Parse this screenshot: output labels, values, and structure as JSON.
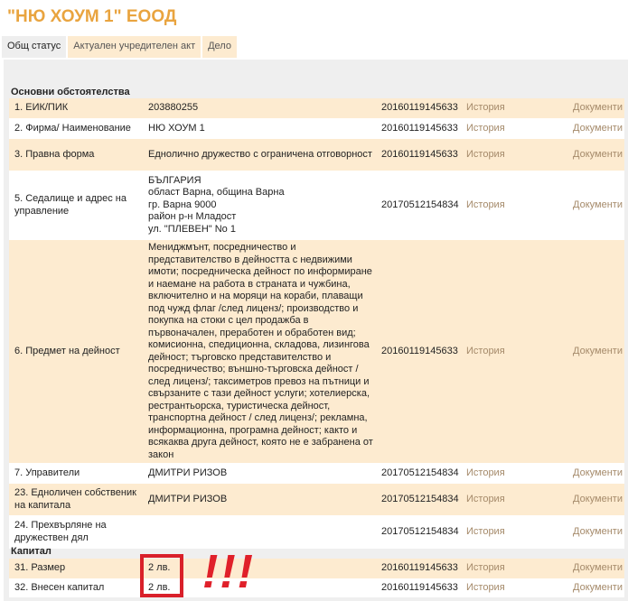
{
  "title": "\"НЮ ХОУМ 1\" ЕООД",
  "tabs": [
    {
      "label": "Общ статус",
      "active": true
    },
    {
      "label": "Актуален учредителен акт"
    },
    {
      "label": "Дело"
    }
  ],
  "sections": {
    "main": "Основни обстоятелства",
    "capital": "Капитал"
  },
  "rows": [
    {
      "label": "1.  ЕИК/ПИК",
      "value": "203880255",
      "date": "20160119145633",
      "history": "История",
      "docs": "Документи"
    },
    {
      "label": "2.  Фирма/ Наименование",
      "value": "НЮ ХОУМ 1",
      "date": "20160119145633",
      "history": "История",
      "docs": "Документи"
    },
    {
      "label": "3.  Правна форма",
      "value": "Еднолично дружество с ограничена отговорност",
      "date": "20160119145633",
      "history": "История",
      "docs": "Документи"
    },
    {
      "label": "5.  Седалище и адрес на управление",
      "value": "БЪЛГАРИЯ\nобласт Варна, община Варна\nгр. Варна 9000\nрайон р-н Младост\nул. \"ПЛЕВЕН\" No 1",
      "date": "20170512154834",
      "history": "История",
      "docs": "Документи"
    },
    {
      "label": "6.  Предмет на дейност",
      "value": "Мениджмънт, посредничество и представителство в дейността с недвижими имоти; посредническа дейност по информиране и наемане на работа в страната и чужбина, включително и на моряци на кораби, плаващи под чужд флаг /след лиценз/; производство и покупка на стоки с цел продажба в първоначален, преработен и обработен вид; комисионна, спедиционна, складова, лизингова дейност; търговско представителство и посредничество; външно-търговска дейност /след лиценз/; таксиметров превоз на пътници и свързаните с тази дейност услуги; хотелиерска, рестрантьорска, туристическа дейност, транспортна дейност / след лиценз/; рекламна, информационна, програмна дейност; както и всякаква друга дейност, която не е забранена от закон",
      "date": "20160119145633",
      "history": "История",
      "docs": "Документи"
    },
    {
      "label": "7.  Управители",
      "value": "ДМИТРИ РИЗОВ",
      "date": "20170512154834",
      "history": "История",
      "docs": "Документи"
    },
    {
      "label": "23.  Едноличен собственик на капитала",
      "value": "ДМИТРИ РИЗОВ",
      "date": "20170512154834",
      "history": "История",
      "docs": "Документи"
    },
    {
      "label": "24.  Прехвърляне на дружествен дял",
      "value": "",
      "date": "20170512154834",
      "history": "История",
      "docs": "Документи"
    }
  ],
  "capital_rows": [
    {
      "label": "31.  Размер",
      "value": "2 лв.",
      "date": "20160119145633",
      "history": "История",
      "docs": "Документи"
    },
    {
      "label": "32.  Внесен капитал",
      "value": "2 лв.",
      "date": "20160119145633",
      "history": "История",
      "docs": "Документи"
    }
  ],
  "annotation": "!!!",
  "colors": {
    "title": "#e9a43f",
    "row_alt": "#fdebd0",
    "highlight": "#d9202a"
  }
}
